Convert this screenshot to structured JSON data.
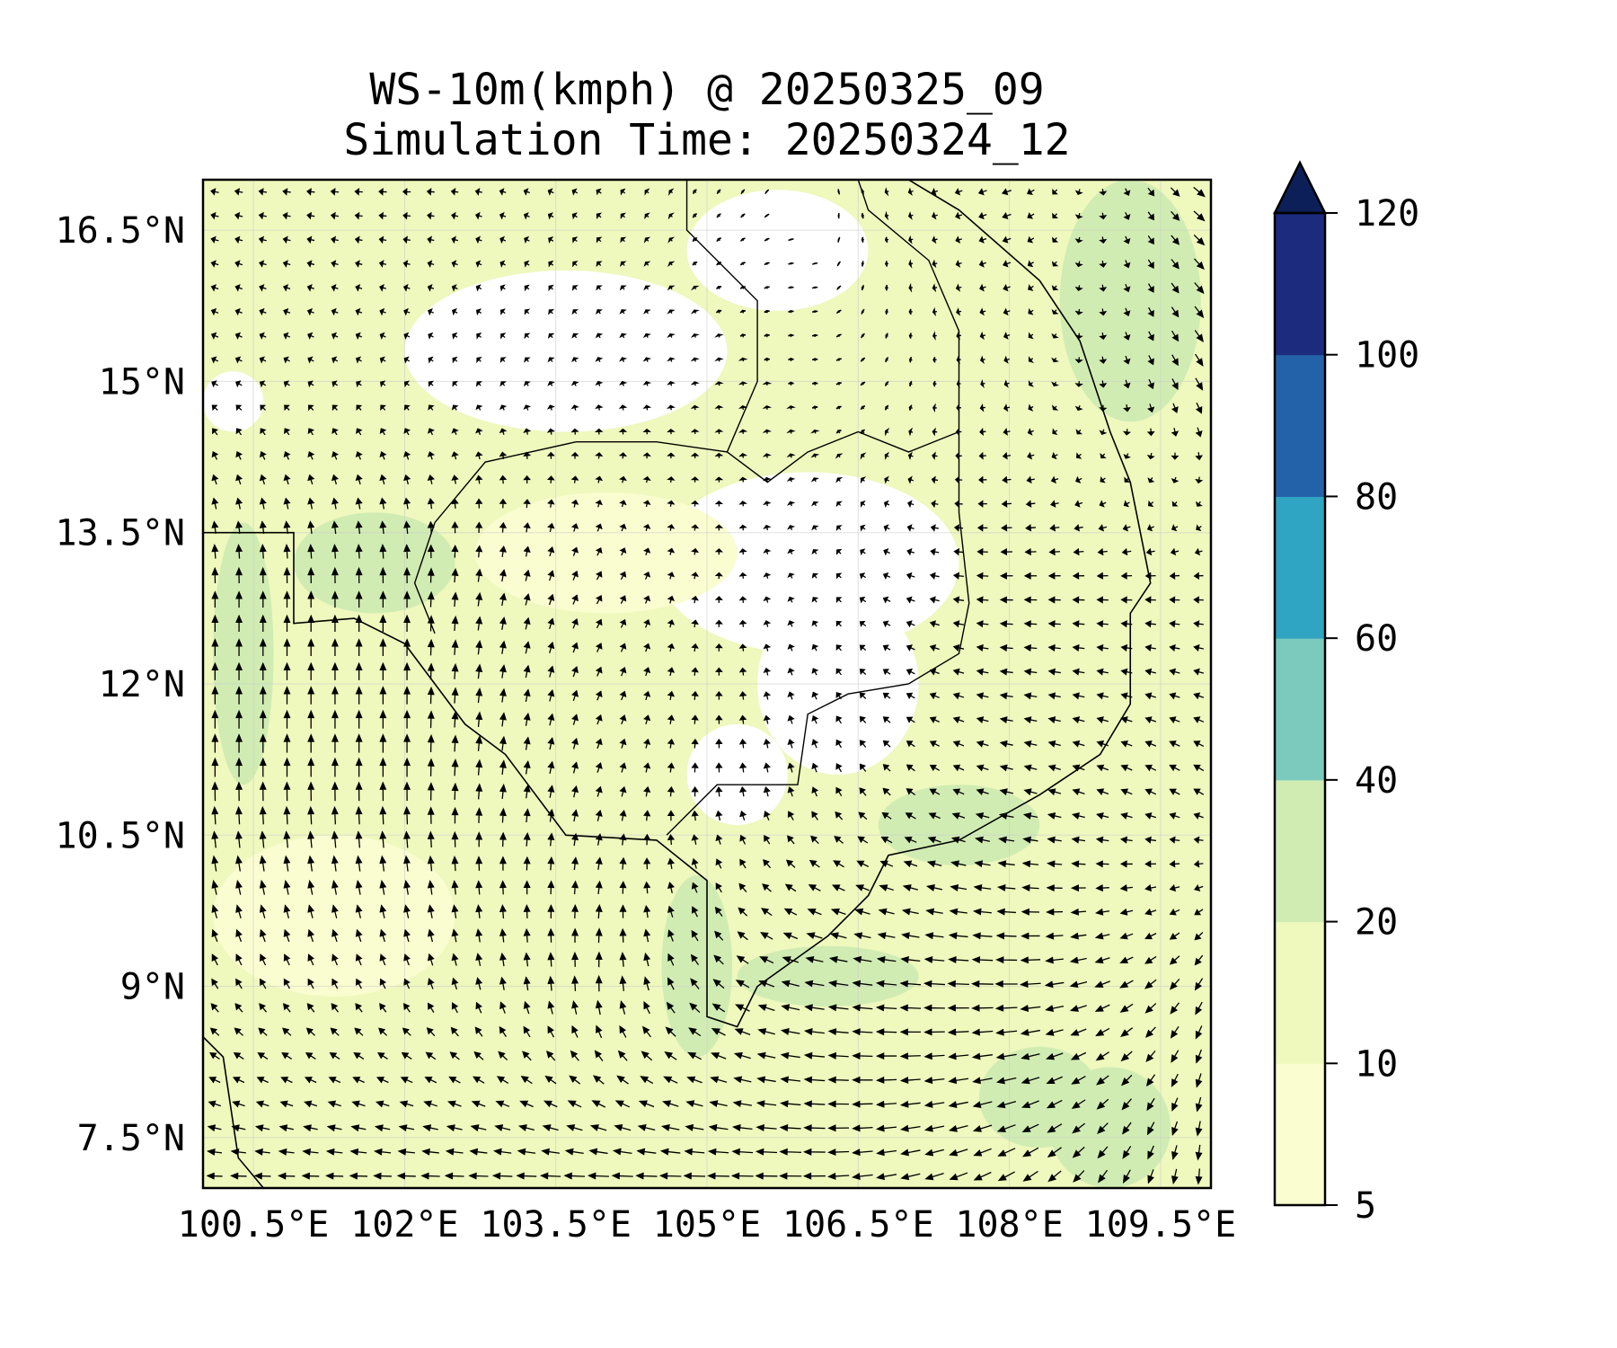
{
  "chart_data": {
    "type": "heatmap",
    "subtype": "filled-contour-with-wind-vectors",
    "title_line1": "WS-10m(kmph) @ 20250325_09",
    "title_line2": "Simulation Time: 20250324_12",
    "xlim": [
      100,
      110
    ],
    "ylim": [
      7,
      17
    ],
    "grid": true,
    "x_ticks": [
      {
        "value": 100.5,
        "label": "100.5°E"
      },
      {
        "value": 102,
        "label": "102°E"
      },
      {
        "value": 103.5,
        "label": "103.5°E"
      },
      {
        "value": 105,
        "label": "105°E"
      },
      {
        "value": 106.5,
        "label": "106.5°E"
      },
      {
        "value": 108,
        "label": "108°E"
      },
      {
        "value": 109.5,
        "label": "109.5°E"
      }
    ],
    "y_ticks": [
      {
        "value": 7.5,
        "label": "7.5°N"
      },
      {
        "value": 9,
        "label": "9°N"
      },
      {
        "value": 10.5,
        "label": "10.5°N"
      },
      {
        "value": 12,
        "label": "12°N"
      },
      {
        "value": 13.5,
        "label": "13.5°N"
      },
      {
        "value": 15,
        "label": "15°N"
      },
      {
        "value": 16.5,
        "label": "16.5°N"
      }
    ],
    "colorbar": {
      "levels": [
        5,
        10,
        20,
        40,
        60,
        80,
        100,
        120
      ],
      "labels": [
        "5",
        "10",
        "20",
        "40",
        "60",
        "80",
        "100",
        "120"
      ],
      "colors": [
        "#fafdd0",
        "#eff8bd",
        "#d0ecb3",
        "#7bcabd",
        "#2fa4c3",
        "#2362a8",
        "#1c2b7d"
      ],
      "extend_color": "#0c1f58",
      "extend": "max"
    },
    "background_level_color": "#eff8bd",
    "below_min_color": "#ffffff",
    "regions": [
      {
        "lon": 103.6,
        "lat": 15.3,
        "rlon": 1.6,
        "rlat": 0.8,
        "color": "#ffffff"
      },
      {
        "lon": 105.7,
        "lat": 16.3,
        "rlon": 0.9,
        "rlat": 0.6,
        "color": "#ffffff"
      },
      {
        "lon": 106.0,
        "lat": 13.2,
        "rlon": 1.5,
        "rlat": 0.9,
        "color": "#ffffff"
      },
      {
        "lon": 106.3,
        "lat": 12.0,
        "rlon": 0.8,
        "rlat": 0.9,
        "color": "#ffffff"
      },
      {
        "lon": 105.3,
        "lat": 11.1,
        "rlon": 0.5,
        "rlat": 0.5,
        "color": "#ffffff"
      },
      {
        "lon": 100.3,
        "lat": 14.8,
        "rlon": 0.3,
        "rlat": 0.3,
        "color": "#ffffff"
      },
      {
        "lon": 104.0,
        "lat": 13.3,
        "rlon": 1.3,
        "rlat": 0.6,
        "color": "#fafdd0"
      },
      {
        "lon": 101.3,
        "lat": 9.7,
        "rlon": 1.2,
        "rlat": 0.8,
        "color": "#fafdd0"
      },
      {
        "lon": 100.4,
        "lat": 12.3,
        "rlon": 0.3,
        "rlat": 1.3,
        "color": "#d0ecb3"
      },
      {
        "lon": 101.7,
        "lat": 13.2,
        "rlon": 0.8,
        "rlat": 0.5,
        "color": "#d0ecb3"
      },
      {
        "lon": 109.2,
        "lat": 15.8,
        "rlon": 0.7,
        "rlat": 1.2,
        "color": "#d0ecb3"
      },
      {
        "lon": 104.9,
        "lat": 9.2,
        "rlon": 0.35,
        "rlat": 0.9,
        "color": "#d0ecb3"
      },
      {
        "lon": 106.2,
        "lat": 9.1,
        "rlon": 0.9,
        "rlat": 0.3,
        "color": "#d0ecb3"
      },
      {
        "lon": 107.5,
        "lat": 10.6,
        "rlon": 0.8,
        "rlat": 0.4,
        "color": "#d0ecb3"
      },
      {
        "lon": 108.3,
        "lat": 7.9,
        "rlon": 0.6,
        "rlat": 0.5,
        "color": "#d0ecb3"
      },
      {
        "lon": 109.0,
        "lat": 7.6,
        "rlon": 0.6,
        "rlat": 0.6,
        "color": "#d0ecb3"
      }
    ],
    "wind_grid": {
      "units": "kmph",
      "lons": [
        100,
        102,
        104,
        106,
        108,
        110
      ],
      "lats": [
        17,
        15,
        13,
        11,
        9,
        7
      ],
      "u": [
        [
          -5,
          -5,
          -3,
          0,
          -6,
          8
        ],
        [
          -4,
          -3,
          -1,
          0,
          -3,
          5
        ],
        [
          0,
          0,
          3,
          -2,
          -8,
          -6
        ],
        [
          0,
          0,
          2,
          -2,
          -8,
          -6
        ],
        [
          -4,
          -3,
          0,
          -12,
          -14,
          -4
        ],
        [
          -10,
          -12,
          -14,
          -14,
          -10,
          0
        ]
      ],
      "v": [
        [
          1,
          0,
          2,
          0,
          -2,
          -6
        ],
        [
          2,
          2,
          3,
          2,
          -1,
          -8
        ],
        [
          10,
          10,
          5,
          3,
          0,
          0
        ],
        [
          12,
          12,
          6,
          6,
          2,
          4
        ],
        [
          6,
          6,
          10,
          2,
          0,
          -8
        ],
        [
          0,
          0,
          0,
          0,
          -6,
          -10
        ]
      ]
    },
    "coastline": [
      [
        100.0,
        13.5
      ],
      [
        100.9,
        13.5
      ],
      [
        100.9,
        12.6
      ],
      [
        101.5,
        12.65
      ],
      [
        102.0,
        12.4
      ],
      [
        102.3,
        12.0
      ],
      [
        102.6,
        11.6
      ],
      [
        103.0,
        11.3
      ],
      [
        103.3,
        10.9
      ],
      [
        103.6,
        10.5
      ],
      [
        104.5,
        10.45
      ],
      [
        105.0,
        10.05
      ],
      [
        105.0,
        8.7
      ],
      [
        105.3,
        8.6
      ],
      [
        105.5,
        9.0
      ],
      [
        106.2,
        9.5
      ],
      [
        106.6,
        9.9
      ],
      [
        106.8,
        10.3
      ],
      [
        107.5,
        10.45
      ],
      [
        108.3,
        10.9
      ],
      [
        108.9,
        11.3
      ],
      [
        109.2,
        11.8
      ],
      [
        109.2,
        12.7
      ],
      [
        109.4,
        13.0
      ],
      [
        109.2,
        14.0
      ],
      [
        109.0,
        14.5
      ],
      [
        108.7,
        15.4
      ],
      [
        108.3,
        16.0
      ],
      [
        107.5,
        16.7
      ],
      [
        107.0,
        17.0
      ]
    ],
    "coastline_south": [
      [
        100.0,
        8.5
      ],
      [
        100.2,
        8.3
      ],
      [
        100.35,
        7.3
      ],
      [
        100.6,
        7.0
      ]
    ],
    "borders": [
      [
        [
          102.3,
          13.6
        ],
        [
          102.8,
          14.2
        ],
        [
          103.7,
          14.4
        ],
        [
          104.5,
          14.4
        ],
        [
          105.2,
          14.3
        ],
        [
          105.6,
          14.0
        ],
        [
          106.0,
          14.3
        ],
        [
          106.5,
          14.5
        ],
        [
          107.0,
          14.3
        ],
        [
          107.5,
          14.5
        ],
        [
          107.5,
          13.7
        ],
        [
          107.6,
          12.8
        ],
        [
          107.5,
          12.3
        ],
        [
          107.0,
          12.0
        ],
        [
          106.4,
          11.9
        ],
        [
          106.0,
          11.7
        ],
        [
          105.9,
          11.0
        ],
        [
          105.1,
          11.0
        ],
        [
          104.6,
          10.5
        ]
      ],
      [
        [
          104.8,
          17.0
        ],
        [
          104.8,
          16.5
        ],
        [
          105.5,
          15.8
        ],
        [
          105.5,
          15.0
        ],
        [
          105.2,
          14.3
        ]
      ],
      [
        [
          106.5,
          17.0
        ],
        [
          106.6,
          16.7
        ],
        [
          107.2,
          16.2
        ],
        [
          107.5,
          15.5
        ],
        [
          107.5,
          14.5
        ]
      ],
      [
        [
          102.3,
          13.6
        ],
        [
          102.1,
          13.0
        ],
        [
          102.3,
          12.5
        ]
      ]
    ]
  }
}
